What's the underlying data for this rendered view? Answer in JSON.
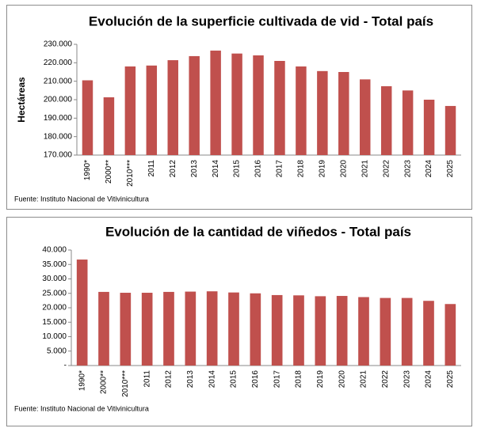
{
  "chart_data": [
    {
      "type": "bar",
      "title": "Evolución de la superficie cultivada de vid - Total país",
      "ylabel": "Hectáreas",
      "source": "Fuente: Instituto Nacional de Vitivinicultura",
      "color": "#c0504d",
      "categories": [
        "1990*",
        "2000**",
        "2010***",
        "2011",
        "2012",
        "2013",
        "2014",
        "2015",
        "2016",
        "2017",
        "2018",
        "2019",
        "2020",
        "2021",
        "2022",
        "2023",
        "2024",
        "2025"
      ],
      "values": [
        210500,
        201300,
        218000,
        218500,
        221400,
        223600,
        226600,
        225000,
        224000,
        221000,
        218000,
        215500,
        215000,
        211000,
        207300,
        205000,
        200000,
        196600
      ],
      "ylim": [
        170000,
        230000
      ],
      "yticks": [
        {
          "value": 170000,
          "label": "170.000"
        },
        {
          "value": 180000,
          "label": "180.000"
        },
        {
          "value": 190000,
          "label": "190.000"
        },
        {
          "value": 200000,
          "label": "200.000"
        },
        {
          "value": 210000,
          "label": "210.000"
        },
        {
          "value": 220000,
          "label": "220.000"
        },
        {
          "value": 230000,
          "label": "230.000"
        }
      ]
    },
    {
      "type": "bar",
      "title": "Evolución de la cantidad de viñedos - Total país",
      "source": "Fuente: Instituto Nacional de Vitivinicultura",
      "color": "#c0504d",
      "categories": [
        "1990*",
        "2000**",
        "2010***",
        "2011",
        "2012",
        "2013",
        "2014",
        "2015",
        "2016",
        "2017",
        "2018",
        "2019",
        "2020",
        "2021",
        "2022",
        "2023",
        "2024",
        "2025"
      ],
      "values": [
        36700,
        25500,
        25200,
        25200,
        25500,
        25600,
        25700,
        25300,
        25000,
        24400,
        24300,
        24000,
        24100,
        23700,
        23400,
        23400,
        22400,
        21300
      ],
      "ylim": [
        0,
        40000
      ],
      "yticks": [
        {
          "value": 0,
          "label": "-"
        },
        {
          "value": 5000,
          "label": "5.000"
        },
        {
          "value": 10000,
          "label": "10.000"
        },
        {
          "value": 15000,
          "label": "15.000"
        },
        {
          "value": 20000,
          "label": "20.000"
        },
        {
          "value": 25000,
          "label": "25.000"
        },
        {
          "value": 30000,
          "label": "30.000"
        },
        {
          "value": 35000,
          "label": "35.000"
        },
        {
          "value": 40000,
          "label": "40.000"
        }
      ]
    }
  ]
}
